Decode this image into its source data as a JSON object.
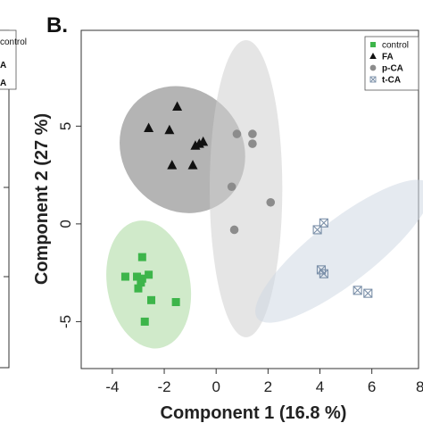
{
  "left_panel": {
    "legend_fragments": [
      "control",
      "A",
      "A"
    ]
  },
  "chart_data": {
    "type": "scatter",
    "panel_label": "B.",
    "xlabel": "Component 1 (16.8 %)",
    "ylabel": "Component 2 (27 %)",
    "xlim": [
      -5.2,
      7.8
    ],
    "ylim": [
      -7.4,
      9.9
    ],
    "x_ticks": [
      -4,
      -2,
      0,
      2,
      4,
      6,
      8
    ],
    "x_tick_labels": [
      "-4",
      "-2",
      "0",
      "2",
      "4",
      "6",
      "8"
    ],
    "y_ticks": [
      -5,
      0,
      5
    ],
    "y_tick_labels": [
      "-5",
      "0",
      "5"
    ],
    "legend_position": "top-right",
    "series": [
      {
        "name": "control",
        "marker": "square",
        "color": "#3db54a",
        "ellipse": {
          "cx": -2.6,
          "cy": -3.1,
          "rx": 1.6,
          "ry": 3.3,
          "angle_deg": -10,
          "fill": "#a9d99f"
        },
        "points": [
          {
            "x": -2.85,
            "y": -1.7
          },
          {
            "x": -3.5,
            "y": -2.7
          },
          {
            "x": -3.05,
            "y": -2.7
          },
          {
            "x": -2.85,
            "y": -2.8
          },
          {
            "x": -2.6,
            "y": -2.6
          },
          {
            "x": -2.9,
            "y": -3.0
          },
          {
            "x": -3.0,
            "y": -3.3
          },
          {
            "x": -2.5,
            "y": -3.9
          },
          {
            "x": -1.55,
            "y": -4.0
          },
          {
            "x": -2.75,
            "y": -5.0
          }
        ]
      },
      {
        "name": "FA",
        "marker": "triangle",
        "color": "#111111",
        "ellipse": {
          "cx": -1.3,
          "cy": 3.8,
          "rx": 2.3,
          "ry": 3.4,
          "angle_deg": -42,
          "fill": "#777777"
        },
        "points": [
          {
            "x": -1.5,
            "y": 6.0
          },
          {
            "x": -2.6,
            "y": 4.9
          },
          {
            "x": -1.8,
            "y": 4.8
          },
          {
            "x": -0.65,
            "y": 4.1
          },
          {
            "x": -0.8,
            "y": 4.0
          },
          {
            "x": -0.9,
            "y": 3.0
          },
          {
            "x": -1.7,
            "y": 3.0
          },
          {
            "x": -0.5,
            "y": 4.2
          }
        ]
      },
      {
        "name": "p-CA",
        "marker": "circle",
        "color": "#8c8c8c",
        "ellipse": {
          "cx": 1.15,
          "cy": 1.8,
          "rx": 1.4,
          "ry": 7.6,
          "angle_deg": 0,
          "fill": "#cfcfcf"
        },
        "points": [
          {
            "x": 0.8,
            "y": 4.6
          },
          {
            "x": 1.4,
            "y": 4.6
          },
          {
            "x": 1.4,
            "y": 4.1
          },
          {
            "x": 0.6,
            "y": 1.9
          },
          {
            "x": 2.1,
            "y": 1.1
          },
          {
            "x": 0.7,
            "y": -0.3
          }
        ]
      },
      {
        "name": "t-CA",
        "marker": "boxed-x",
        "color": "#7a8fa8",
        "ellipse": {
          "cx": 4.9,
          "cy": -1.4,
          "rx": 4.2,
          "ry": 1.6,
          "angle_deg": -38,
          "fill": "#cfd9e3"
        },
        "points": [
          {
            "x": 4.15,
            "y": 0.05
          },
          {
            "x": 3.9,
            "y": -0.3
          },
          {
            "x": 4.05,
            "y": -2.35
          },
          {
            "x": 4.15,
            "y": -2.55
          },
          {
            "x": 5.45,
            "y": -3.4
          },
          {
            "x": 5.85,
            "y": -3.55
          }
        ]
      }
    ]
  }
}
